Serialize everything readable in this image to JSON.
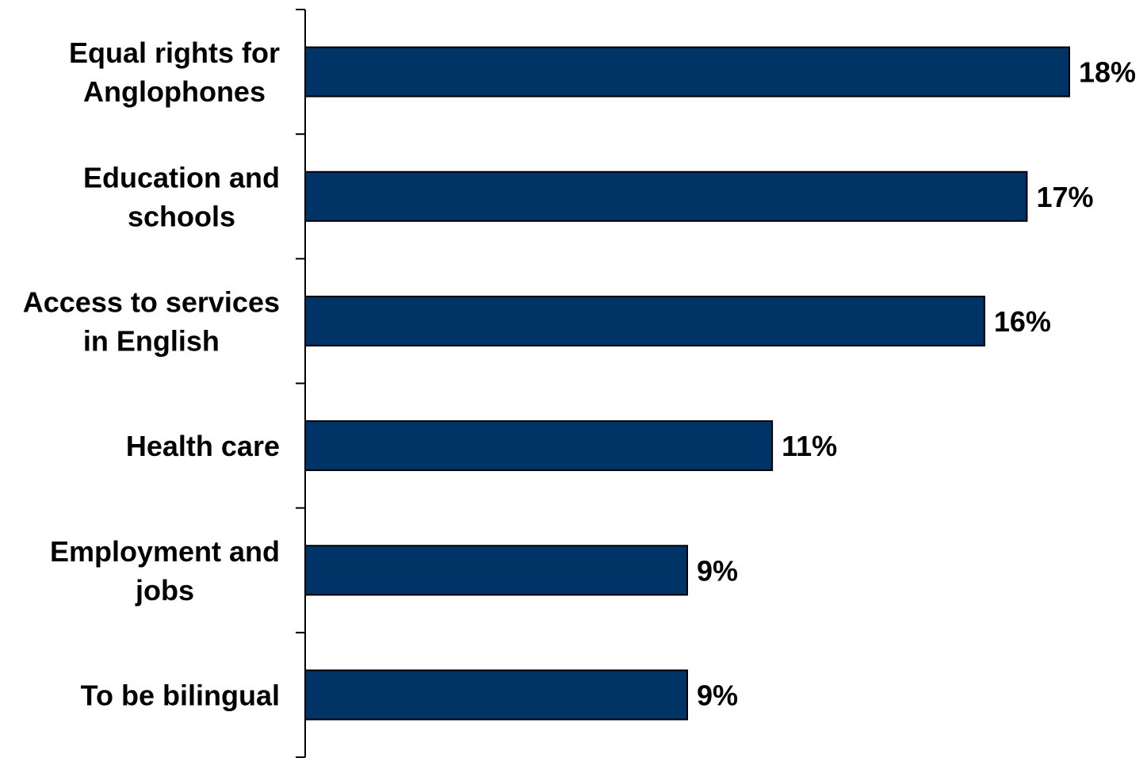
{
  "chart_data": {
    "type": "bar",
    "orientation": "horizontal",
    "categories": [
      [
        "Equal rights for",
        "Anglophones"
      ],
      [
        "Education and",
        "schools"
      ],
      [
        "Access to services",
        "in English"
      ],
      [
        "Health care"
      ],
      [
        "Employment and",
        "jobs"
      ],
      [
        "To be bilingual"
      ]
    ],
    "values": [
      18,
      17,
      16,
      11,
      9,
      9
    ],
    "value_suffix": "%",
    "xlim": [
      0,
      18
    ],
    "grid": false,
    "legend": "none",
    "title": "",
    "xlabel": "",
    "ylabel": ""
  },
  "colors": {
    "bar_fill": "#003366",
    "bar_stroke": "#000000",
    "text": "#000000",
    "axis": "#000000"
  }
}
